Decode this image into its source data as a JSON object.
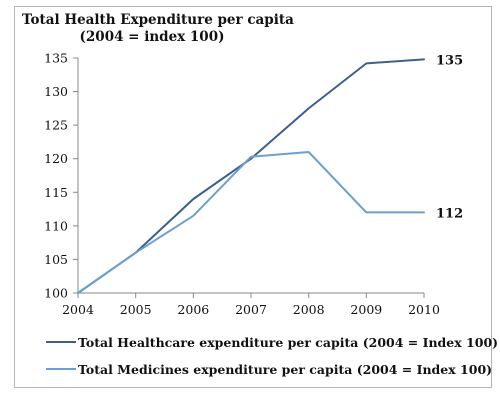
{
  "chart_data": {
    "type": "line",
    "title": "Total Health Expenditure per capita",
    "subtitle": "(2004 = index 100)",
    "x": [
      "2004",
      "2005",
      "2006",
      "2007",
      "2008",
      "2009",
      "2010"
    ],
    "ylim": [
      100,
      135
    ],
    "yticks": [
      100,
      105,
      110,
      115,
      120,
      125,
      130,
      135
    ],
    "grid": false,
    "legend_position": "bottom",
    "series": [
      {
        "name": "Total Healthcare expenditure per capita (2004 = Index 100)",
        "values": [
          100,
          106,
          114,
          120,
          127.5,
          134.2,
          134.8
        ],
        "color": "#3c5f8f",
        "end_label": "135"
      },
      {
        "name": "Total Medicines expenditure per capita (2004 = Index 100)",
        "values": [
          100,
          106,
          111.5,
          120.3,
          121,
          112,
          112
        ],
        "color": "#6e9fce",
        "end_label": "112"
      }
    ]
  }
}
